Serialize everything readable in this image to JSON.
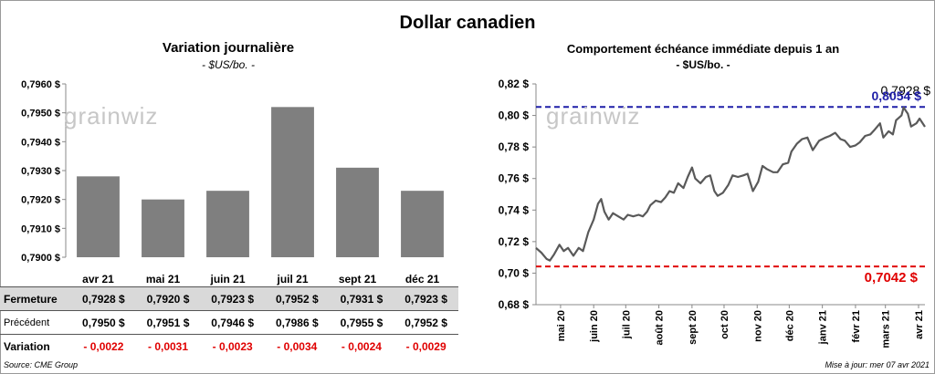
{
  "title": "Dollar canadien",
  "watermark": "grainwiz",
  "left": {
    "title": "Variation  journalière",
    "subtitle": "- $US/bo. -"
  },
  "right": {
    "title": "Comportement échéance immédiate depuis 1 an",
    "subtitle": "- $US/bo. -"
  },
  "table": {
    "row_labels": {
      "close": "Fermeture",
      "prev": "Précédent",
      "var": "Variation"
    },
    "close": [
      "0,7928  $",
      "0,7920  $",
      "0,7923  $",
      "0,7952  $",
      "0,7931  $",
      "0,7923  $"
    ],
    "prev": [
      "0,7950  $",
      "0,7951  $",
      "0,7946  $",
      "0,7986  $",
      "0,7955  $",
      "0,7952  $"
    ],
    "var": [
      "- 0,0022",
      "- 0,0031",
      "- 0,0023",
      "- 0,0034",
      "- 0,0024",
      "- 0,0029"
    ]
  },
  "footer": {
    "source": "Source: CME Group",
    "updated": "Mise à jour: mer 07 avr 2021"
  },
  "colors": {
    "bar": "#7f7f7f",
    "line": "#595959",
    "high": "#1f1fa8",
    "low": "#e00000"
  },
  "chart_data": [
    {
      "type": "bar",
      "title": "Variation  journalière",
      "subtitle": "- $US/bo. -",
      "categories": [
        "avr 21",
        "mai 21",
        "juin 21",
        "juil 21",
        "sept 21",
        "déc 21"
      ],
      "values": [
        0.7928,
        0.792,
        0.7923,
        0.7952,
        0.7931,
        0.7923
      ],
      "ylim": [
        0.79,
        0.796
      ],
      "yticks": [
        "0,7900 $",
        "0,7910 $",
        "0,7920 $",
        "0,7930 $",
        "0,7940 $",
        "0,7950 $",
        "0,7960 $"
      ],
      "grid": false
    },
    {
      "type": "line",
      "title": "Comportement échéance immédiate depuis 1 an",
      "subtitle": "- $US/bo. -",
      "ylim": [
        0.68,
        0.82
      ],
      "yticks": [
        "0,68 $",
        "0,70 $",
        "0,72 $",
        "0,74 $",
        "0,76 $",
        "0,78 $",
        "0,80 $",
        "0,82 $"
      ],
      "xticks": [
        "mai 20",
        "juin 20",
        "juil 20",
        "août 20",
        "sept 20",
        "oct 20",
        "nov 20",
        "déc 20",
        "janv 21",
        "févr 21",
        "mars 21",
        "avr 21"
      ],
      "x_range": [
        "2020-04-08",
        "2021-04-07"
      ],
      "series": [
        {
          "points": [
            [
              "2020-04-08",
              0.716
            ],
            [
              "2020-04-13",
              0.713
            ],
            [
              "2020-04-18",
              0.709
            ],
            [
              "2020-04-21",
              0.708
            ],
            [
              "2020-04-25",
              0.712
            ],
            [
              "2020-04-30",
              0.718
            ],
            [
              "2020-05-04",
              0.714
            ],
            [
              "2020-05-08",
              0.716
            ],
            [
              "2020-05-13",
              0.711
            ],
            [
              "2020-05-18",
              0.716
            ],
            [
              "2020-05-22",
              0.714
            ],
            [
              "2020-05-27",
              0.726
            ],
            [
              "2020-06-01",
              0.734
            ],
            [
              "2020-06-05",
              0.744
            ],
            [
              "2020-06-08",
              0.747
            ],
            [
              "2020-06-11",
              0.739
            ],
            [
              "2020-06-15",
              0.734
            ],
            [
              "2020-06-19",
              0.738
            ],
            [
              "2020-06-24",
              0.736
            ],
            [
              "2020-06-29",
              0.734
            ],
            [
              "2020-07-03",
              0.737
            ],
            [
              "2020-07-08",
              0.736
            ],
            [
              "2020-07-13",
              0.737
            ],
            [
              "2020-07-17",
              0.736
            ],
            [
              "2020-07-21",
              0.739
            ],
            [
              "2020-07-24",
              0.743
            ],
            [
              "2020-07-29",
              0.746
            ],
            [
              "2020-08-03",
              0.745
            ],
            [
              "2020-08-07",
              0.748
            ],
            [
              "2020-08-11",
              0.752
            ],
            [
              "2020-08-15",
              0.751
            ],
            [
              "2020-08-19",
              0.757
            ],
            [
              "2020-08-24",
              0.754
            ],
            [
              "2020-08-28",
              0.761
            ],
            [
              "2020-09-01",
              0.767
            ],
            [
              "2020-09-04",
              0.76
            ],
            [
              "2020-09-09",
              0.757
            ],
            [
              "2020-09-14",
              0.761
            ],
            [
              "2020-09-18",
              0.762
            ],
            [
              "2020-09-22",
              0.752
            ],
            [
              "2020-09-25",
              0.749
            ],
            [
              "2020-09-30",
              0.751
            ],
            [
              "2020-10-05",
              0.756
            ],
            [
              "2020-10-09",
              0.762
            ],
            [
              "2020-10-14",
              0.761
            ],
            [
              "2020-10-19",
              0.762
            ],
            [
              "2020-10-23",
              0.763
            ],
            [
              "2020-10-28",
              0.752
            ],
            [
              "2020-11-02",
              0.758
            ],
            [
              "2020-11-06",
              0.768
            ],
            [
              "2020-11-10",
              0.766
            ],
            [
              "2020-11-16",
              0.764
            ],
            [
              "2020-11-20",
              0.764
            ],
            [
              "2020-11-25",
              0.769
            ],
            [
              "2020-11-30",
              0.77
            ],
            [
              "2020-12-03",
              0.777
            ],
            [
              "2020-12-08",
              0.782
            ],
            [
              "2020-12-13",
              0.785
            ],
            [
              "2020-12-18",
              0.786
            ],
            [
              "2020-12-23",
              0.778
            ],
            [
              "2020-12-29",
              0.784
            ],
            [
              "2021-01-04",
              0.786
            ],
            [
              "2021-01-08",
              0.787
            ],
            [
              "2021-01-13",
              0.789
            ],
            [
              "2021-01-18",
              0.785
            ],
            [
              "2021-01-22",
              0.784
            ],
            [
              "2021-01-27",
              0.78
            ],
            [
              "2021-02-01",
              0.781
            ],
            [
              "2021-02-05",
              0.783
            ],
            [
              "2021-02-10",
              0.787
            ],
            [
              "2021-02-15",
              0.788
            ],
            [
              "2021-02-19",
              0.791
            ],
            [
              "2021-02-24",
              0.795
            ],
            [
              "2021-02-27",
              0.786
            ],
            [
              "2021-03-04",
              0.79
            ],
            [
              "2021-03-08",
              0.788
            ],
            [
              "2021-03-11",
              0.797
            ],
            [
              "2021-03-16",
              0.8
            ],
            [
              "2021-03-18",
              0.805
            ],
            [
              "2021-03-22",
              0.801
            ],
            [
              "2021-03-25",
              0.793
            ],
            [
              "2021-03-30",
              0.795
            ],
            [
              "2021-04-02",
              0.798
            ],
            [
              "2021-04-07",
              0.7928
            ]
          ]
        }
      ],
      "hlines": [
        {
          "value": 0.8054,
          "label": "0,8054 $",
          "color": "#1f1fa8"
        },
        {
          "value": 0.7042,
          "label": "0,7042  $",
          "color": "#e00000"
        }
      ],
      "last_label": "0,7928 $",
      "grid": false
    }
  ]
}
